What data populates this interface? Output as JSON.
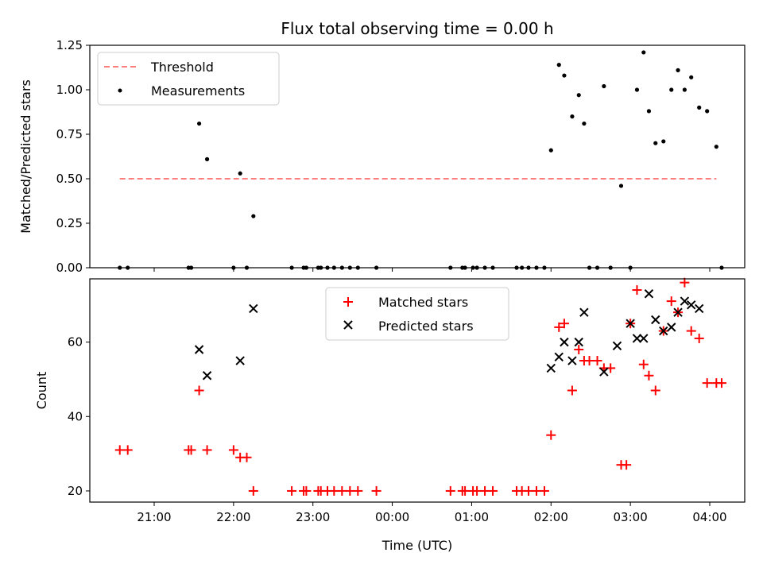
{
  "chart_data": [
    {
      "type": "scatter",
      "title": "Flux total observing time = 0.00 h",
      "xlabel": "",
      "ylabel": "Matched/Predicted stars",
      "ylim": [
        0,
        1.25
      ],
      "yticks": [
        "0.00",
        "0.25",
        "0.50",
        "0.75",
        "1.00",
        "1.25"
      ],
      "x_axis": "time-of-night (shared with bottom panel)",
      "legend": {
        "placement": "upper-left",
        "entries": [
          "Threshold",
          "Measurements"
        ]
      },
      "threshold": {
        "name": "Threshold",
        "y": 0.5,
        "x": [
          "20:34",
          "04:05"
        ],
        "color": "#ff7f7f"
      },
      "series": [
        {
          "name": "Measurements",
          "color": "#000000",
          "x": [
            "20:34",
            "20:40",
            "21:26",
            "21:28",
            "21:34",
            "21:40",
            "22:00",
            "22:05",
            "22:10",
            "22:15",
            "22:44",
            "22:53",
            "22:55",
            "23:04",
            "23:06",
            "23:11",
            "23:16",
            "23:22",
            "23:28",
            "23:34",
            "23:48",
            "00:44",
            "00:53",
            "00:55",
            "01:01",
            "01:04",
            "01:10",
            "01:16",
            "01:34",
            "01:38",
            "01:43",
            "01:49",
            "01:55",
            "02:00",
            "02:06",
            "02:10",
            "02:16",
            "02:21",
            "02:25",
            "02:29",
            "02:35",
            "02:40",
            "02:45",
            "02:53",
            "03:00",
            "03:05",
            "03:10",
            "03:14",
            "03:19",
            "03:25",
            "03:31",
            "03:36",
            "03:41",
            "03:46",
            "03:52",
            "03:58",
            "04:05",
            "04:09"
          ],
          "y": [
            0,
            0,
            0,
            0,
            0.81,
            0.61,
            0,
            0.53,
            0,
            0.29,
            0,
            0,
            0,
            0,
            0,
            0,
            0,
            0,
            0,
            0,
            0,
            0,
            0,
            0,
            0,
            0,
            0,
            0,
            0,
            0,
            0,
            0,
            0,
            0.66,
            1.14,
            1.08,
            0.85,
            0.97,
            0.81,
            0,
            0,
            1.02,
            0,
            0.46,
            0,
            1.0,
            1.21,
            0.88,
            0.7,
            0.71,
            1.0,
            1.11,
            1.0,
            1.07,
            0.9,
            0.88,
            0.68,
            0
          ]
        }
      ]
    },
    {
      "type": "scatter",
      "title": "",
      "xlabel": "Time (UTC)",
      "ylabel": "Count",
      "ylim": [
        17,
        77
      ],
      "yticks": [
        "20",
        "40",
        "60"
      ],
      "xticks": [
        "21:00",
        "22:00",
        "23:00",
        "00:00",
        "01:00",
        "02:00",
        "03:00",
        "04:00"
      ],
      "legend": {
        "placement": "upper-center",
        "entries": [
          "Matched stars",
          "Predicted stars"
        ]
      },
      "series": [
        {
          "name": "Matched stars",
          "marker": "+",
          "color": "#ff0000",
          "x": [
            "20:34",
            "20:40",
            "21:26",
            "21:28",
            "21:34",
            "21:40",
            "22:00",
            "22:05",
            "22:10",
            "22:15",
            "22:44",
            "22:53",
            "22:55",
            "23:04",
            "23:06",
            "23:11",
            "23:16",
            "23:22",
            "23:28",
            "23:34",
            "23:48",
            "00:44",
            "00:53",
            "00:55",
            "01:01",
            "01:04",
            "01:10",
            "01:16",
            "01:34",
            "01:38",
            "01:43",
            "01:49",
            "01:55",
            "02:00",
            "02:06",
            "02:10",
            "02:16",
            "02:21",
            "02:25",
            "02:29",
            "02:35",
            "02:40",
            "02:45",
            "02:53",
            "02:57",
            "03:00",
            "03:05",
            "03:10",
            "03:14",
            "03:19",
            "03:25",
            "03:31",
            "03:36",
            "03:41",
            "03:46",
            "03:52",
            "03:58",
            "04:05",
            "04:09"
          ],
          "y": [
            31,
            31,
            31,
            31,
            47,
            31,
            31,
            29,
            29,
            20,
            20,
            20,
            20,
            20,
            20,
            20,
            20,
            20,
            20,
            20,
            20,
            20,
            20,
            20,
            20,
            20,
            20,
            20,
            20,
            20,
            20,
            20,
            20,
            35,
            64,
            65,
            47,
            58,
            55,
            55,
            55,
            53,
            53,
            27,
            27,
            65,
            74,
            54,
            51,
            47,
            63,
            71,
            68,
            76,
            63,
            61,
            49,
            49,
            49
          ]
        },
        {
          "name": "Predicted stars",
          "marker": "x",
          "color": "#000000",
          "x": [
            "21:34",
            "21:40",
            "22:05",
            "22:15",
            "02:00",
            "02:06",
            "02:10",
            "02:16",
            "02:21",
            "02:25",
            "02:40",
            "02:50",
            "03:00",
            "03:05",
            "03:10",
            "03:14",
            "03:19",
            "03:25",
            "03:31",
            "03:36",
            "03:41",
            "03:46",
            "03:52"
          ],
          "y": [
            58,
            51,
            55,
            69,
            53,
            56,
            60,
            55,
            60,
            68,
            52,
            59,
            65,
            61,
            61,
            73,
            66,
            63,
            64,
            68,
            71,
            70,
            69
          ]
        }
      ]
    }
  ]
}
